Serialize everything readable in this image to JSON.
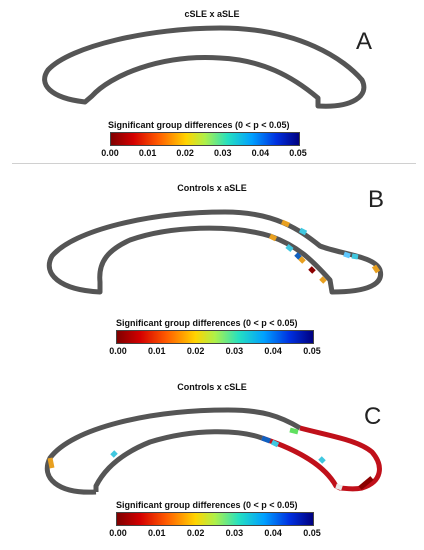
{
  "panels": [
    {
      "letter": "A",
      "title": "cSLE x aSLE",
      "legend_title": "Significant group differences (0 < p < 0.05)",
      "ticks": [
        "0.00",
        "0.01",
        "0.02",
        "0.03",
        "0.04",
        "0.05"
      ]
    },
    {
      "letter": "B",
      "title": "Controls x aSLE",
      "legend_title": "Significant group differences (0 < p < 0.05)",
      "ticks": [
        "0.00",
        "0.01",
        "0.02",
        "0.03",
        "0.04",
        "0.05"
      ]
    },
    {
      "letter": "C",
      "title": "Controls x cSLE",
      "legend_title": "Significant group differences (0 < p < 0.05)",
      "ticks": [
        "0.00",
        "0.01",
        "0.02",
        "0.03",
        "0.04",
        "0.05"
      ]
    }
  ],
  "colors": {
    "outline": "#555555",
    "significant_dark_red": "#8b0000",
    "significant_red": "#c0101a",
    "significant_orange": "#e8a020",
    "significant_cyan": "#40c8e0",
    "significant_blue": "#1060c0",
    "significant_green": "#60e060"
  }
}
